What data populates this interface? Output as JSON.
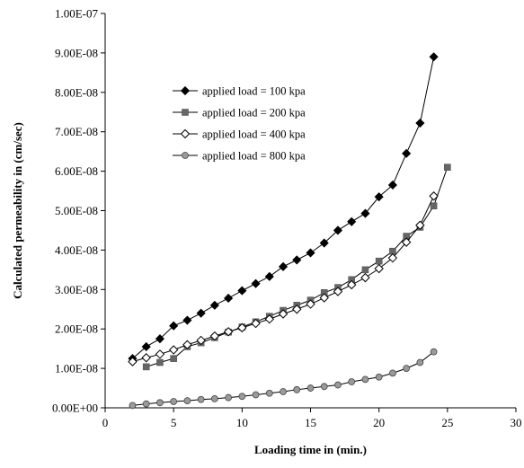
{
  "chart_data": {
    "type": "line",
    "title": "",
    "xlabel": "Loading time in (min.)",
    "ylabel": "Calculated permeability in (cm/sec)",
    "xlim": [
      0,
      30
    ],
    "ylim": [
      0,
      1e-07
    ],
    "x_ticks": [
      0,
      5,
      10,
      15,
      20,
      25,
      30
    ],
    "x_tick_labels": [
      "0",
      "5",
      "10",
      "15",
      "20",
      "25",
      "30"
    ],
    "y_ticks": [
      0,
      1e-08,
      2e-08,
      3e-08,
      4e-08,
      5e-08,
      6e-08,
      7e-08,
      8e-08,
      9e-08,
      1e-07
    ],
    "y_tick_labels": [
      "0.00E+00",
      "1.00E-08",
      "2.00E-08",
      "3.00E-08",
      "4.00E-08",
      "5.00E-08",
      "6.00E-08",
      "7.00E-08",
      "8.00E-08",
      "9.00E-08",
      "1.00E-07"
    ],
    "grid": false,
    "legend_position": "upper-left, inside plot",
    "series": [
      {
        "name": "applied load = 100 kpa",
        "marker": "diamond-filled",
        "color": "#000000",
        "x": [
          2,
          3,
          4,
          5,
          6,
          7,
          8,
          9,
          10,
          11,
          12,
          13,
          14,
          15,
          16,
          17,
          18,
          19,
          20,
          21,
          22,
          23,
          24
        ],
        "values": [
          1.25e-08,
          1.55e-08,
          1.75e-08,
          2.08e-08,
          2.22e-08,
          2.4e-08,
          2.6e-08,
          2.78e-08,
          2.97e-08,
          3.15e-08,
          3.33e-08,
          3.58e-08,
          3.75e-08,
          3.93e-08,
          4.18e-08,
          4.5e-08,
          4.72e-08,
          4.93e-08,
          5.35e-08,
          5.65e-08,
          6.45e-08,
          7.22e-08,
          8.9e-08
        ]
      },
      {
        "name": "applied load = 200 kpa",
        "marker": "square-filled",
        "color": "#666666",
        "x": [
          3,
          4,
          5,
          6,
          7,
          8,
          9,
          10,
          11,
          12,
          13,
          14,
          15,
          16,
          17,
          18,
          19,
          20,
          21,
          22,
          23,
          24,
          25
        ],
        "values": [
          1.04e-08,
          1.15e-08,
          1.25e-08,
          1.55e-08,
          1.65e-08,
          1.78e-08,
          1.92e-08,
          2.05e-08,
          2.18e-08,
          2.32e-08,
          2.47e-08,
          2.6e-08,
          2.73e-08,
          2.92e-08,
          3.05e-08,
          3.25e-08,
          3.5e-08,
          3.72e-08,
          3.97e-08,
          4.35e-08,
          4.58e-08,
          5.12e-08,
          6.1e-08
        ]
      },
      {
        "name": "applied load = 400 kpa",
        "marker": "diamond-open",
        "color": "#000000",
        "x": [
          2,
          3,
          4,
          5,
          6,
          7,
          8,
          9,
          10,
          11,
          12,
          13,
          14,
          15,
          16,
          17,
          18,
          19,
          20,
          21,
          22,
          23,
          24
        ],
        "values": [
          1.17e-08,
          1.27e-08,
          1.36e-08,
          1.47e-08,
          1.6e-08,
          1.71e-08,
          1.82e-08,
          1.93e-08,
          2.03e-08,
          2.14e-08,
          2.25e-08,
          2.38e-08,
          2.5e-08,
          2.63e-08,
          2.79e-08,
          2.95e-08,
          3.12e-08,
          3.3e-08,
          3.53e-08,
          3.8e-08,
          4.2e-08,
          4.63e-08,
          5.37e-08
        ]
      },
      {
        "name": "applied load = 800 kpa",
        "marker": "circle-gray",
        "color": "#888888",
        "x": [
          2,
          3,
          4,
          5,
          6,
          7,
          8,
          9,
          10,
          11,
          12,
          13,
          14,
          15,
          16,
          17,
          18,
          19,
          20,
          21,
          22,
          23,
          24
        ],
        "values": [
          6e-10,
          1e-09,
          1.3e-09,
          1.6e-09,
          1.8e-09,
          2.1e-09,
          2.3e-09,
          2.6e-09,
          2.9e-09,
          3.3e-09,
          3.7e-09,
          4.1e-09,
          4.6e-09,
          5e-09,
          5.4e-09,
          5.8e-09,
          6.6e-09,
          7.2e-09,
          7.8e-09,
          8.8e-09,
          1e-08,
          1.15e-08,
          1.42e-08
        ]
      }
    ]
  }
}
